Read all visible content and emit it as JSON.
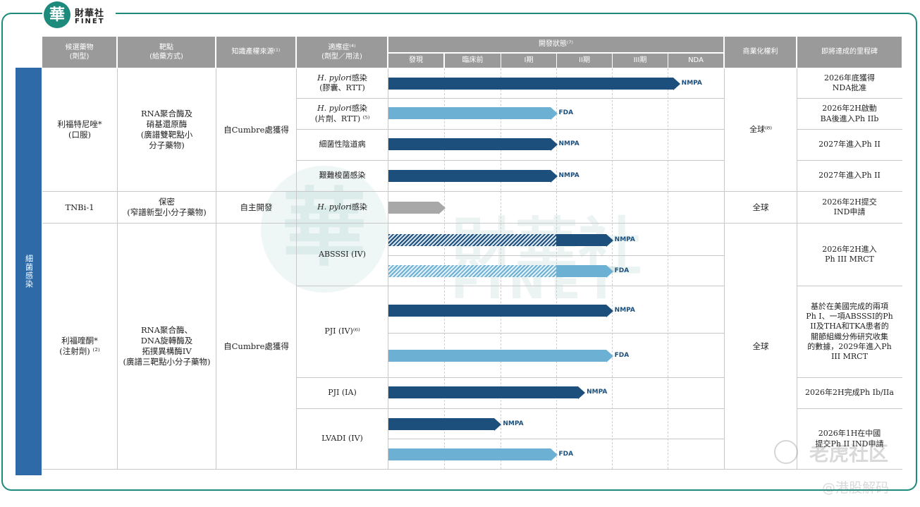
{
  "brand": {
    "logo_char": "華",
    "name_cn": "財華社",
    "name_en": "FINET"
  },
  "header": {
    "candidate": "候選藥物\n(劑型)",
    "target": "靶點\n(給藥方式)",
    "ip": "知識產權來源⁽¹⁾",
    "indication": "適應症⁽⁴⁾\n(劑型／用法)",
    "status": "開發狀態⁽⁷⁾",
    "stages": [
      "發現",
      "臨床前",
      "I期",
      "II期",
      "III期",
      "NDA"
    ],
    "commercial": "商業化權利",
    "milestone": "即將達成的里程碑"
  },
  "category": "細菌感染",
  "drugs": [
    {
      "name": "利福特尼唑*\n(口服)",
      "target": "RNA聚合酶及\n硝基還原酶\n(廣譜雙靶點小\n分子藥物)",
      "ip": "自Cumbre處獲得",
      "rights": "全球⁽⁸⁾"
    },
    {
      "name": "TNBi-1",
      "target": "保密\n(窄譜新型小分子藥物)",
      "ip": "自主開發",
      "rights": "全球"
    },
    {
      "name": "利福喹酮*\n(注射劑) ⁽²⁾",
      "target": "RNA聚合酶、\nDNA旋轉酶及\n拓撲異構酶IV\n(廣譜三靶點小分子藥物)",
      "ip": "自Cumbre處獲得",
      "rights": "全球"
    }
  ],
  "indications": [
    {
      "pre": "H. pylori",
      "post": "感染\n(膠囊、RTT)"
    },
    {
      "pre": "H. pylori",
      "post": "感染\n(片劑、RTT) ⁽⁵⁾"
    },
    {
      "pre": "",
      "post": "細菌性陰道病"
    },
    {
      "pre": "",
      "post": "艱難梭菌感染"
    },
    {
      "pre": "H. pylori",
      "post": "感染"
    },
    {
      "pre": "",
      "post": "ABSSSI (IV)"
    },
    {
      "pre": "",
      "post": "PJI (IV)⁽⁶⁾"
    },
    {
      "pre": "",
      "post": "PJI (IA)"
    },
    {
      "pre": "",
      "post": "LVADI (IV)"
    }
  ],
  "milestones": [
    "2026年底獲得\nNDA批准",
    "2026年2H啟動\nBA後進入Ph IIb",
    "2027年進入Ph II",
    "2027年進入Ph II",
    "2026年2H提交\nIND申請",
    "2026年2H進入\nPh III MRCT",
    "基於在美國完成的兩項\nPh I、一項ABSSSI的Ph\nII及THA和TKA患者的\n關節組織分佈研究收集\n的數據，2029年進入Ph\nIII MRCT",
    "2026年2H完成Ph Ib/IIa",
    "2026年1H在中國\n提交Ph II IND申請"
  ],
  "bars": [
    {
      "stage_progress": 5.2,
      "color": "dark",
      "label": "NMPA"
    },
    {
      "stage_progress": 3.0,
      "color": "light",
      "label": "FDA"
    },
    {
      "stage_progress": 3.0,
      "color": "dark",
      "label": "NMPA"
    },
    {
      "stage_progress": 3.0,
      "color": "dark",
      "label": "NMPA"
    },
    {
      "stage_progress": 1.0,
      "color": "gray",
      "label": ""
    },
    {
      "stage_progress": 4.0,
      "color": "dark",
      "label": "NMPA",
      "hatched_to": 3.0
    },
    {
      "stage_progress": 4.0,
      "color": "light",
      "label": "FDA",
      "hatched_to": 3.0
    },
    {
      "stage_progress": 4.0,
      "color": "dark",
      "label": "NMPA"
    },
    {
      "stage_progress": 4.0,
      "color": "light",
      "label": "FDA"
    },
    {
      "stage_progress": 3.5,
      "color": "dark",
      "label": "NMPA"
    },
    {
      "stage_progress": 2.0,
      "color": "dark",
      "label": "NMPA"
    },
    {
      "stage_progress": 3.0,
      "color": "light",
      "label": "FDA"
    }
  ],
  "watermarks": {
    "center_cn": "財華社",
    "center_en": "FINET",
    "corner1": "老虎社区",
    "corner2": "@港股解码"
  }
}
